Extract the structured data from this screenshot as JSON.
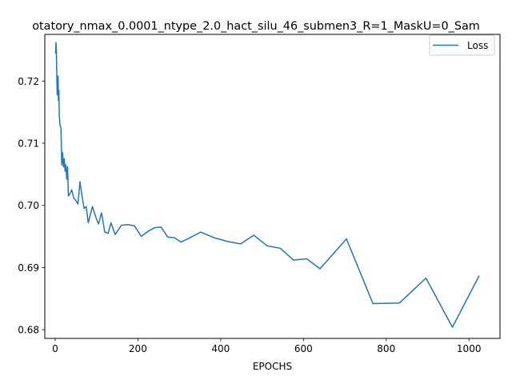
{
  "chart_data": {
    "type": "line",
    "title": "otatory_nmax_0.0001_ntype_2.0_hact_silu_46_submen3_R=1_MaskU=0_Sam",
    "xlabel": "EPOCHS",
    "ylabel": "",
    "xlim": [
      -25,
      1075
    ],
    "ylim": [
      0.6786,
      0.7275
    ],
    "xticks": [
      0,
      200,
      400,
      600,
      800,
      1000
    ],
    "yticks": [
      0.68,
      0.69,
      0.7,
      0.71,
      0.72
    ],
    "ytick_labels": [
      "0.68",
      "0.69",
      "0.70",
      "0.71",
      "0.72"
    ],
    "grid": false,
    "legend": {
      "location": "upper right",
      "entries": [
        "Loss"
      ]
    },
    "series": [
      {
        "name": "Loss",
        "color": "#1f77b4",
        "x": [
          1,
          2,
          3,
          4,
          5,
          6,
          7,
          8,
          9,
          10,
          12,
          14,
          16,
          18,
          20,
          22,
          24,
          26,
          28,
          30,
          32,
          35,
          40,
          45,
          50,
          55,
          60,
          65,
          70,
          75,
          80,
          90,
          100,
          105,
          112,
          120,
          128,
          135,
          145,
          160,
          176,
          192,
          208,
          224,
          240,
          256,
          272,
          288,
          304,
          320,
          352,
          384,
          416,
          448,
          480,
          512,
          544,
          576,
          608,
          640,
          704,
          768,
          832,
          896,
          960,
          1024
        ],
        "y": [
          0.7245,
          0.7262,
          0.7245,
          0.721,
          0.7178,
          0.7188,
          0.7208,
          0.7168,
          0.7185,
          0.7145,
          0.7128,
          0.7125,
          0.7065,
          0.7085,
          0.7062,
          0.7075,
          0.7055,
          0.7065,
          0.7042,
          0.7062,
          0.7015,
          0.7018,
          0.7025,
          0.7012,
          0.7008,
          0.7002,
          0.7038,
          0.7015,
          0.6995,
          0.6998,
          0.6972,
          0.6998,
          0.6978,
          0.697,
          0.6988,
          0.6957,
          0.6955,
          0.6972,
          0.6953,
          0.6968,
          0.6969,
          0.6967,
          0.695,
          0.6958,
          0.6964,
          0.6965,
          0.6949,
          0.6948,
          0.6941,
          0.6946,
          0.6957,
          0.6948,
          0.6942,
          0.6938,
          0.6952,
          0.6935,
          0.6931,
          0.6912,
          0.6914,
          0.6898,
          0.6946,
          0.6842,
          0.6843,
          0.6883,
          0.6804,
          0.6886
        ]
      }
    ]
  }
}
